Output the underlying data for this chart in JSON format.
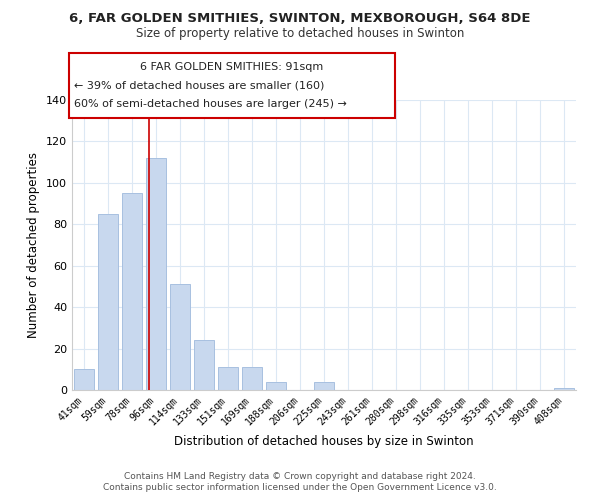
{
  "title": "6, FAR GOLDEN SMITHIES, SWINTON, MEXBOROUGH, S64 8DE",
  "subtitle": "Size of property relative to detached houses in Swinton",
  "xlabel": "Distribution of detached houses by size in Swinton",
  "ylabel": "Number of detached properties",
  "bar_color": "#c8d8ee",
  "bar_edge_color": "#a8c0e0",
  "categories": [
    "41sqm",
    "59sqm",
    "78sqm",
    "96sqm",
    "114sqm",
    "133sqm",
    "151sqm",
    "169sqm",
    "188sqm",
    "206sqm",
    "225sqm",
    "243sqm",
    "261sqm",
    "280sqm",
    "298sqm",
    "316sqm",
    "335sqm",
    "353sqm",
    "371sqm",
    "390sqm",
    "408sqm"
  ],
  "values": [
    10,
    85,
    95,
    112,
    51,
    24,
    11,
    11,
    4,
    0,
    4,
    0,
    0,
    0,
    0,
    0,
    0,
    0,
    0,
    0,
    1
  ],
  "ylim": [
    0,
    140
  ],
  "yticks": [
    0,
    20,
    40,
    60,
    80,
    100,
    120,
    140
  ],
  "vline_x": 2.7,
  "vline_color": "#cc0000",
  "ann_line1": "6 FAR GOLDEN SMITHIES: 91sqm",
  "ann_line2": "← 39% of detached houses are smaller (160)",
  "ann_line3": "60% of semi-detached houses are larger (245) →",
  "footer_line1": "Contains HM Land Registry data © Crown copyright and database right 2024.",
  "footer_line2": "Contains public sector information licensed under the Open Government Licence v3.0.",
  "background_color": "#ffffff",
  "grid_color": "#dce8f4"
}
